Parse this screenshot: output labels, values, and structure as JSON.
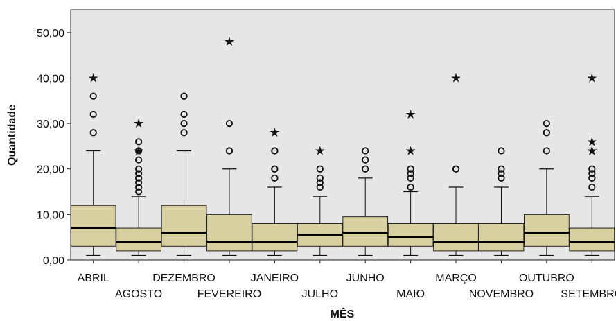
{
  "chart_data": {
    "type": "boxplot",
    "xlabel": "MÊS",
    "ylabel": "Quantidade",
    "ylim": [
      0,
      55
    ],
    "yticks": [
      "0,00",
      "10,00",
      "20,00",
      "30,00",
      "40,00",
      "50,00"
    ],
    "ytick_values": [
      0,
      10,
      20,
      30,
      40,
      50
    ],
    "categories": [
      "ABRIL",
      "AGOSTO",
      "DEZEMBRO",
      "FEVEREIRO",
      "JANEIRO",
      "JULHO",
      "JUNHO",
      "MAIO",
      "MARÇO",
      "NOVEMBRO",
      "OUTUBRO",
      "SETEMBRO"
    ],
    "boxes": [
      {
        "min": 1,
        "q1": 3,
        "median": 7,
        "q3": 12,
        "max": 24,
        "outliers": [
          28,
          32,
          36
        ],
        "extremes": [
          40
        ]
      },
      {
        "min": 1,
        "q1": 2,
        "median": 4,
        "q3": 7,
        "max": 14,
        "outliers": [
          15,
          16,
          17,
          18,
          19,
          20,
          22,
          24,
          26
        ],
        "extremes": [
          24,
          30
        ]
      },
      {
        "min": 1,
        "q1": 3,
        "median": 6,
        "q3": 12,
        "max": 24,
        "outliers": [
          28,
          30,
          32,
          36,
          36
        ],
        "extremes": []
      },
      {
        "min": 1,
        "q1": 2,
        "median": 4,
        "q3": 10,
        "max": 20,
        "outliers": [
          24,
          24,
          30
        ],
        "extremes": [
          48
        ]
      },
      {
        "min": 1,
        "q1": 2,
        "median": 4,
        "q3": 8,
        "max": 16,
        "outliers": [
          18,
          20,
          20,
          24,
          24
        ],
        "extremes": [
          28
        ]
      },
      {
        "min": 1,
        "q1": 3,
        "median": 5.5,
        "q3": 8,
        "max": 14,
        "outliers": [
          16,
          17,
          18,
          20
        ],
        "extremes": [
          24
        ]
      },
      {
        "min": 1,
        "q1": 3,
        "median": 6,
        "q3": 9.5,
        "max": 18,
        "outliers": [
          20,
          22,
          24
        ],
        "extremes": []
      },
      {
        "min": 1,
        "q1": 3,
        "median": 5,
        "q3": 8,
        "max": 15,
        "outliers": [
          16,
          18,
          19,
          20
        ],
        "extremes": [
          24,
          32
        ]
      },
      {
        "min": 1,
        "q1": 2,
        "median": 4,
        "q3": 8,
        "max": 16,
        "outliers": [
          20,
          20
        ],
        "extremes": [
          40
        ]
      },
      {
        "min": 1,
        "q1": 2,
        "median": 4,
        "q3": 8,
        "max": 16,
        "outliers": [
          18,
          19,
          20,
          24
        ],
        "extremes": []
      },
      {
        "min": 1,
        "q1": 3,
        "median": 6,
        "q3": 10,
        "max": 20,
        "outliers": [
          24,
          28,
          28,
          30
        ],
        "extremes": []
      },
      {
        "min": 1,
        "q1": 2,
        "median": 4,
        "q3": 7,
        "max": 14,
        "outliers": [
          16,
          18,
          19,
          20
        ],
        "extremes": [
          24,
          24,
          26,
          40
        ]
      }
    ],
    "box_color": "#d8d0a0",
    "plot_background": "#e6e6e6",
    "grid": false
  }
}
